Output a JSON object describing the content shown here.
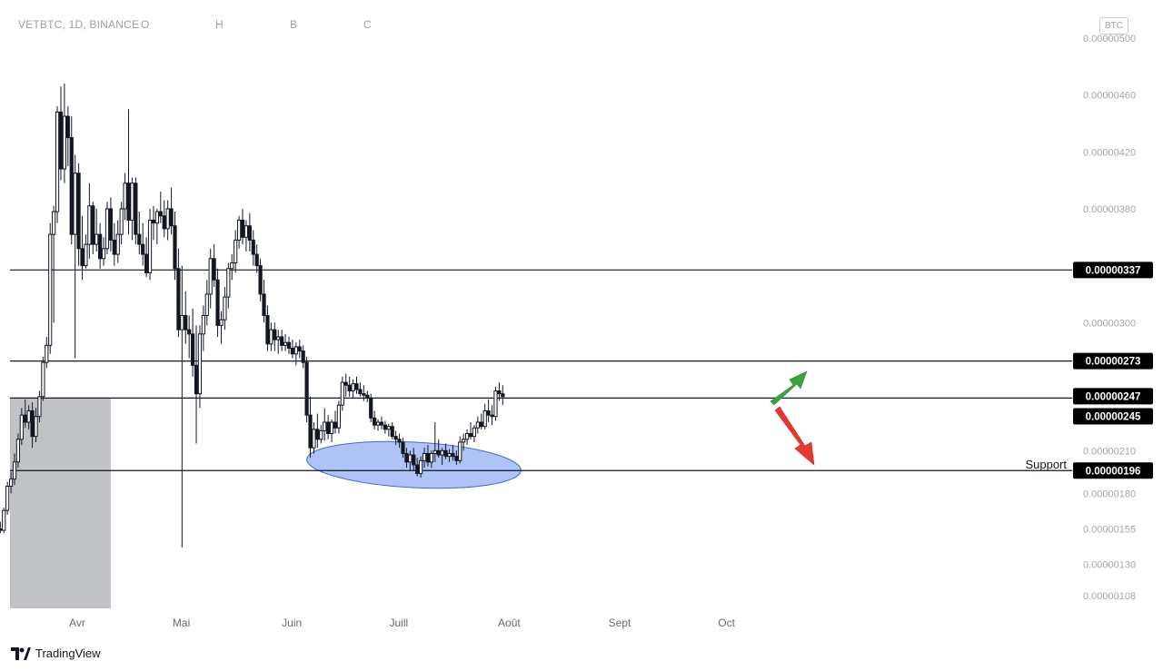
{
  "header": {
    "symbol": "VETBTC, 1D, BINANCE",
    "labels": [
      "O",
      "H",
      "B",
      "C"
    ]
  },
  "currency_badge": "BTC",
  "brand": "TradingView",
  "annotations": {
    "support_label": "Support",
    "zone_color": "#7a9cf0",
    "up_arrow_color": "#3aa444",
    "down_arrow_color": "#e8372f"
  },
  "colors": {
    "candle": "#131722",
    "grey_box": "#c1c2c6",
    "level_line": "#131722",
    "label_bg": "#000000"
  },
  "chart_data": {
    "type": "candlestick",
    "title": "VETBTC, 1D, BINANCE",
    "y_axis_labels": [
      "0.00000500",
      "0.00000460",
      "0.00000420",
      "0.00000380",
      "0.00000300",
      "0.00000210",
      "0.00000180",
      "0.00000155",
      "0.00000130",
      "0.00000108"
    ],
    "y_axis_values": [
      5.0,
      4.6,
      4.2,
      3.8,
      3.0,
      2.1,
      1.8,
      1.55,
      1.3,
      1.08
    ],
    "y_unit_scale": "1e-6",
    "x_axis_labels": [
      "Avr",
      "Mai",
      "Juin",
      "Juill",
      "Août",
      "Sept",
      "Oct"
    ],
    "horizontal_levels": [
      {
        "value": 3.37,
        "label": "0.00000337"
      },
      {
        "value": 2.73,
        "label": "0.00000273"
      },
      {
        "value": 2.47,
        "label": "0.00000247"
      },
      {
        "value": 2.45,
        "label": "0.00000245"
      },
      {
        "value": 1.96,
        "label": "0.00000196"
      }
    ],
    "shaded_region": {
      "from": "2021-03-31",
      "to": "2021-04-27",
      "y_from": 1.08,
      "y_to": 2.47
    },
    "support_zone": {
      "from": "2021-06-23",
      "to": "2021-08-13",
      "y_center": 2.0
    },
    "last_candle_date": "2021-08-15",
    "candles": [
      [
        1.37,
        1.43,
        1.3,
        1.41
      ],
      [
        1.41,
        1.52,
        1.4,
        1.5
      ],
      [
        1.5,
        1.62,
        1.48,
        1.58
      ],
      [
        1.58,
        1.64,
        1.54,
        1.56
      ],
      [
        1.56,
        1.6,
        1.5,
        1.52
      ],
      [
        1.52,
        1.6,
        1.49,
        1.58
      ],
      [
        1.58,
        1.62,
        1.53,
        1.55
      ],
      [
        1.55,
        1.61,
        1.52,
        1.59
      ],
      [
        1.59,
        1.64,
        1.54,
        1.56
      ],
      [
        1.56,
        1.6,
        1.52,
        1.58
      ],
      [
        1.58,
        1.62,
        1.55,
        1.6
      ],
      [
        1.6,
        1.63,
        1.54,
        1.56
      ],
      [
        1.56,
        1.59,
        1.5,
        1.52
      ],
      [
        1.52,
        1.55,
        1.46,
        1.48
      ],
      [
        1.48,
        1.54,
        1.46,
        1.52
      ],
      [
        1.52,
        1.58,
        1.49,
        1.55
      ],
      [
        1.55,
        1.6,
        1.52,
        1.54
      ],
      [
        1.54,
        1.7,
        1.52,
        1.68
      ],
      [
        1.68,
        1.88,
        1.65,
        1.85
      ],
      [
        1.85,
        1.95,
        1.8,
        1.9
      ],
      [
        1.9,
        2.08,
        1.86,
        2.02
      ],
      [
        2.02,
        2.22,
        1.98,
        2.18
      ],
      [
        2.18,
        2.4,
        2.14,
        2.35
      ],
      [
        2.35,
        2.46,
        2.26,
        2.3
      ],
      [
        2.3,
        2.42,
        2.25,
        2.38
      ],
      [
        2.38,
        2.44,
        2.12,
        2.2
      ],
      [
        2.2,
        2.4,
        2.16,
        2.34
      ],
      [
        2.34,
        2.52,
        2.3,
        2.48
      ],
      [
        2.48,
        2.76,
        2.45,
        2.72
      ],
      [
        2.72,
        2.9,
        2.68,
        2.84
      ],
      [
        2.84,
        3.7,
        2.78,
        3.62
      ],
      [
        3.62,
        3.82,
        3.0,
        3.78
      ],
      [
        3.78,
        4.52,
        3.7,
        4.48
      ],
      [
        4.48,
        4.66,
        4.0,
        4.08
      ],
      [
        4.08,
        4.68,
        3.98,
        4.45
      ],
      [
        4.45,
        4.52,
        4.1,
        4.3
      ],
      [
        4.3,
        4.45,
        3.55,
        3.62
      ],
      [
        3.62,
        4.18,
        2.75,
        4.05
      ],
      [
        4.05,
        4.12,
        3.4,
        3.52
      ],
      [
        3.52,
        3.75,
        3.3,
        3.4
      ],
      [
        3.4,
        3.62,
        3.38,
        3.55
      ],
      [
        3.55,
        3.98,
        3.45,
        3.82
      ],
      [
        3.82,
        3.85,
        3.48,
        3.55
      ],
      [
        3.55,
        3.8,
        3.5,
        3.62
      ],
      [
        3.62,
        3.7,
        3.38,
        3.45
      ],
      [
        3.45,
        3.6,
        3.4,
        3.52
      ],
      [
        3.52,
        3.85,
        3.48,
        3.8
      ],
      [
        3.8,
        3.88,
        3.5,
        3.58
      ],
      [
        3.58,
        3.7,
        3.4,
        3.48
      ],
      [
        3.48,
        3.72,
        3.42,
        3.62
      ],
      [
        3.62,
        3.85,
        3.55,
        3.8
      ],
      [
        3.8,
        4.05,
        3.72,
        3.98
      ],
      [
        3.98,
        4.5,
        3.62,
        3.72
      ],
      [
        3.72,
        4.02,
        3.58,
        3.98
      ],
      [
        3.98,
        4.02,
        3.55,
        3.62
      ],
      [
        3.62,
        3.78,
        3.48,
        3.55
      ],
      [
        3.55,
        3.7,
        3.4,
        3.48
      ],
      [
        3.48,
        3.6,
        3.32,
        3.35
      ],
      [
        3.35,
        3.8,
        3.3,
        3.72
      ],
      [
        3.72,
        3.82,
        3.58,
        3.7
      ],
      [
        3.7,
        3.8,
        3.55,
        3.78
      ],
      [
        3.78,
        3.92,
        3.7,
        3.75
      ],
      [
        3.75,
        3.86,
        3.6,
        3.66
      ],
      [
        3.66,
        3.86,
        3.58,
        3.8
      ],
      [
        3.8,
        3.95,
        3.62,
        3.68
      ],
      [
        3.68,
        3.78,
        3.3,
        3.38
      ],
      [
        3.38,
        3.52,
        2.9,
        2.95
      ],
      [
        2.95,
        3.4,
        1.42,
        3.05
      ],
      [
        3.05,
        3.22,
        2.85,
        2.95
      ],
      [
        2.95,
        3.05,
        2.75,
        2.92
      ],
      [
        2.92,
        3.1,
        2.62,
        2.7
      ],
      [
        2.7,
        2.98,
        2.15,
        2.5
      ],
      [
        2.5,
        2.98,
        2.4,
        2.92
      ],
      [
        2.92,
        3.12,
        2.8,
        3.05
      ],
      [
        3.05,
        3.3,
        2.98,
        3.2
      ],
      [
        3.2,
        3.52,
        3.1,
        3.45
      ],
      [
        3.45,
        3.55,
        3.25,
        3.3
      ],
      [
        3.3,
        3.38,
        2.9,
        2.98
      ],
      [
        2.98,
        3.08,
        2.85,
        3.02
      ],
      [
        3.02,
        3.25,
        2.95,
        3.18
      ],
      [
        3.18,
        3.42,
        3.1,
        3.38
      ],
      [
        3.38,
        3.48,
        3.3,
        3.42
      ],
      [
        3.42,
        3.65,
        3.35,
        3.58
      ],
      [
        3.58,
        3.75,
        3.52,
        3.72
      ],
      [
        3.72,
        3.8,
        3.55,
        3.6
      ],
      [
        3.6,
        3.72,
        3.5,
        3.68
      ],
      [
        3.68,
        3.77,
        3.5,
        3.58
      ],
      [
        3.58,
        3.65,
        3.4,
        3.48
      ],
      [
        3.48,
        3.55,
        3.35,
        3.4
      ],
      [
        3.4,
        3.45,
        3.15,
        3.2
      ],
      [
        3.2,
        3.3,
        3.0,
        3.05
      ],
      [
        3.05,
        3.12,
        2.8,
        2.85
      ],
      [
        2.85,
        3.0,
        2.8,
        2.95
      ],
      [
        2.95,
        3.0,
        2.8,
        2.88
      ],
      [
        2.88,
        2.95,
        2.78,
        2.9
      ],
      [
        2.9,
        2.95,
        2.8,
        2.84
      ],
      [
        2.84,
        2.92,
        2.8,
        2.86
      ],
      [
        2.86,
        2.9,
        2.78,
        2.82
      ],
      [
        2.82,
        2.88,
        2.75,
        2.78
      ],
      [
        2.78,
        2.86,
        2.7,
        2.83
      ],
      [
        2.83,
        2.88,
        2.75,
        2.8
      ],
      [
        2.8,
        2.84,
        2.68,
        2.72
      ],
      [
        2.72,
        2.76,
        2.3,
        2.35
      ],
      [
        2.35,
        2.48,
        2.05,
        2.12
      ],
      [
        2.12,
        2.3,
        2.08,
        2.25
      ],
      [
        2.25,
        2.36,
        2.12,
        2.18
      ],
      [
        2.18,
        2.28,
        2.15,
        2.24
      ],
      [
        2.24,
        2.4,
        2.17,
        2.3
      ],
      [
        2.3,
        2.35,
        2.18,
        2.22
      ],
      [
        2.22,
        2.32,
        2.16,
        2.3
      ],
      [
        2.3,
        2.38,
        2.22,
        2.26
      ],
      [
        2.26,
        2.45,
        2.22,
        2.42
      ],
      [
        2.42,
        2.62,
        2.38,
        2.58
      ],
      [
        2.58,
        2.64,
        2.48,
        2.56
      ],
      [
        2.56,
        2.62,
        2.48,
        2.52
      ],
      [
        2.52,
        2.6,
        2.47,
        2.57
      ],
      [
        2.57,
        2.62,
        2.5,
        2.53
      ],
      [
        2.53,
        2.58,
        2.48,
        2.5
      ],
      [
        2.5,
        2.56,
        2.45,
        2.49
      ],
      [
        2.49,
        2.52,
        2.44,
        2.47
      ],
      [
        2.47,
        2.5,
        2.3,
        2.33
      ],
      [
        2.33,
        2.38,
        2.25,
        2.28
      ],
      [
        2.28,
        2.32,
        2.24,
        2.3
      ],
      [
        2.3,
        2.34,
        2.25,
        2.28
      ],
      [
        2.28,
        2.31,
        2.22,
        2.25
      ],
      [
        2.25,
        2.29,
        2.2,
        2.27
      ],
      [
        2.27,
        2.3,
        2.18,
        2.2
      ],
      [
        2.2,
        2.24,
        2.14,
        2.18
      ],
      [
        2.18,
        2.22,
        2.12,
        2.16
      ],
      [
        2.16,
        2.19,
        2.05,
        2.08
      ],
      [
        2.08,
        2.12,
        1.98,
        2.02
      ],
      [
        2.02,
        2.1,
        1.96,
        2.07
      ],
      [
        2.07,
        2.12,
        1.96,
        2.0
      ],
      [
        2.0,
        2.05,
        1.92,
        1.94
      ],
      [
        1.94,
        2.06,
        1.91,
        2.03
      ],
      [
        2.03,
        2.12,
        1.98,
        2.08
      ],
      [
        2.08,
        2.14,
        1.99,
        2.02
      ],
      [
        2.02,
        2.1,
        1.98,
        2.08
      ],
      [
        2.08,
        2.3,
        2.02,
        2.1
      ],
      [
        2.1,
        2.18,
        2.05,
        2.07
      ],
      [
        2.07,
        2.12,
        2.0,
        2.1
      ],
      [
        2.1,
        2.15,
        2.04,
        2.06
      ],
      [
        2.06,
        2.11,
        2.02,
        2.08
      ],
      [
        2.08,
        2.14,
        2.03,
        2.06
      ],
      [
        2.06,
        2.1,
        2.0,
        2.03
      ],
      [
        2.03,
        2.2,
        2.01,
        2.16
      ],
      [
        2.16,
        2.22,
        2.1,
        2.18
      ],
      [
        2.18,
        2.25,
        2.14,
        2.22
      ],
      [
        2.22,
        2.3,
        2.18,
        2.2
      ],
      [
        2.2,
        2.28,
        2.16,
        2.26
      ],
      [
        2.26,
        2.34,
        2.22,
        2.3
      ],
      [
        2.3,
        2.36,
        2.25,
        2.27
      ],
      [
        2.27,
        2.43,
        2.25,
        2.38
      ],
      [
        2.38,
        2.46,
        2.3,
        2.35
      ],
      [
        2.35,
        2.42,
        2.28,
        2.34
      ],
      [
        2.34,
        2.55,
        2.31,
        2.52
      ],
      [
        2.52,
        2.58,
        2.45,
        2.5
      ],
      [
        2.5,
        2.56,
        2.42,
        2.48
      ]
    ]
  }
}
